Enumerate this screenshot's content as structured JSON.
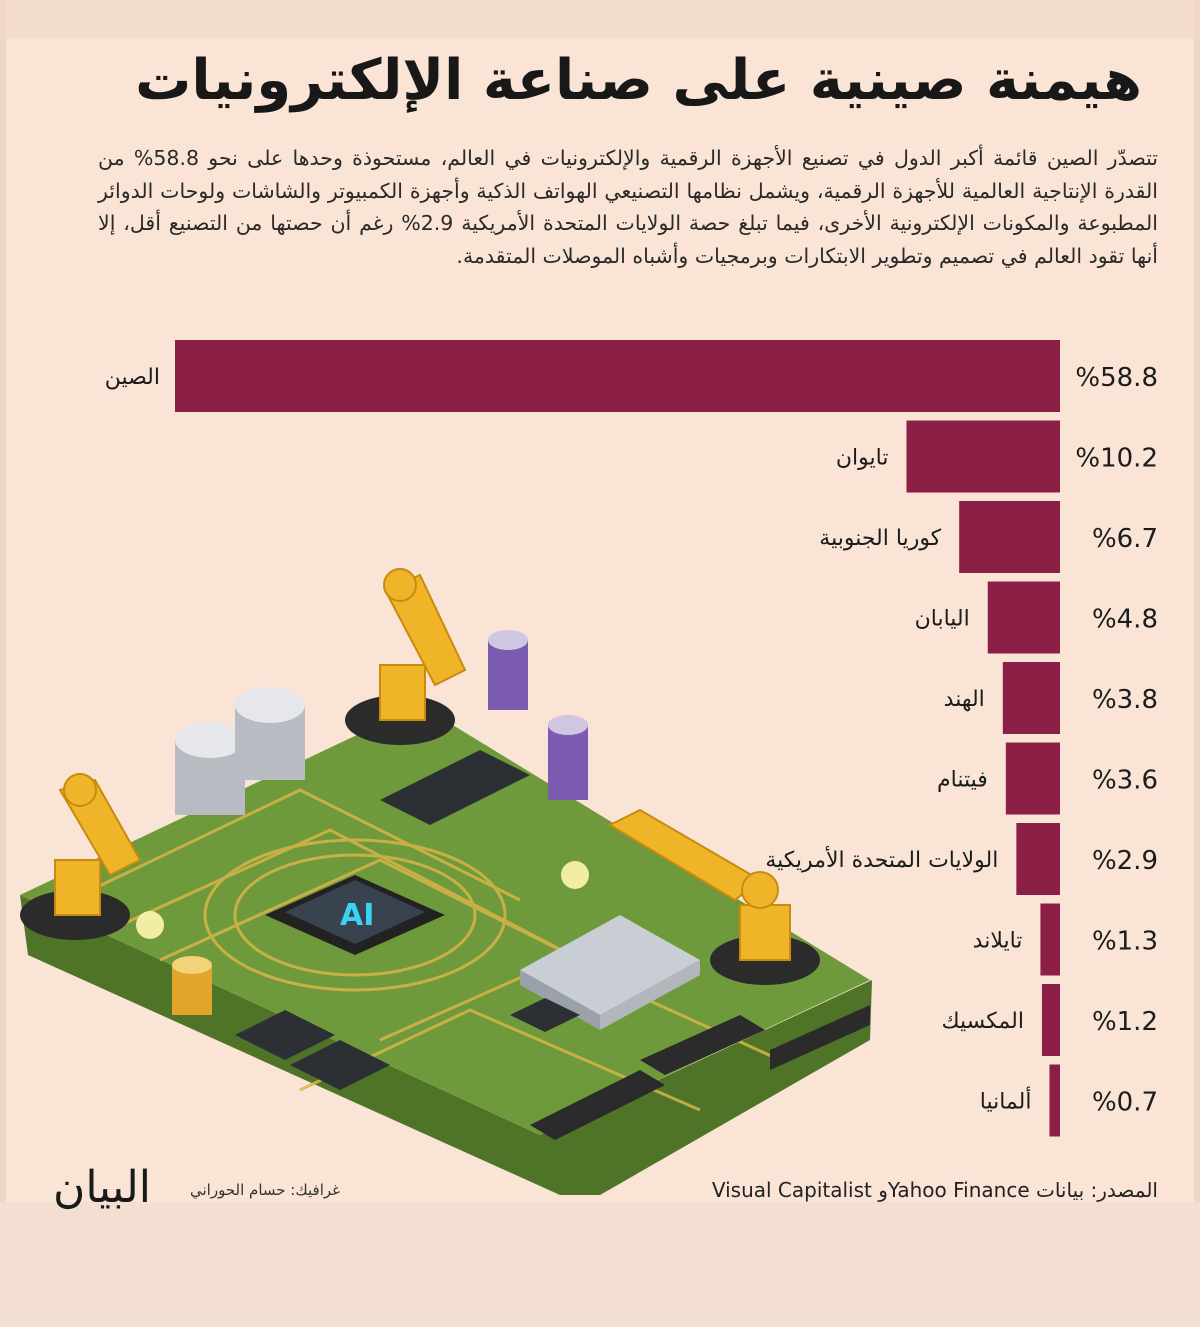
{
  "header": {
    "title": "هيمنة صينية على صناعة الإلكترونيات",
    "intro": "تتصدّر الصين قائمة أكبر الدول في تصنيع الأجهزة الرقمية والإلكترونيات في العالم، مستحوذة وحدها على نحو 58.8% من القدرة الإنتاجية العالمية للأجهزة الرقمية، ويشمل نظامها التصنيعي الهواتف الذكية وأجهزة الكمبيوتر والشاشات ولوحات الدوائر المطبوعة والمكونات الإلكترونية الأخرى، فيما تبلغ حصة الولايات المتحدة الأمريكية 2.9% رغم أن حصتها من التصنيع أقل، إلا أنها تقود العالم في تصميم وتطوير الابتكارات وبرمجيات وأشباه الموصلات المتقدمة."
  },
  "chart_data": {
    "type": "bar",
    "orientation": "horizontal",
    "categories": [
      "الصين",
      "تايوان",
      "كوريا الجنوبية",
      "اليابان",
      "الهند",
      "فيتنام",
      "الولايات المتحدة الأمريكية",
      "تايلاند",
      "المكسيك",
      "ألمانيا"
    ],
    "values": [
      58.8,
      10.2,
      6.7,
      4.8,
      3.8,
      3.6,
      2.9,
      1.3,
      1.2,
      0.7
    ],
    "value_labels": [
      "%58.8",
      "%10.2",
      "%6.7",
      "%4.8",
      "%3.8",
      "%3.6",
      "%2.9",
      "%1.3",
      "%1.2",
      "%0.7"
    ],
    "bar_color": "#8c1f45",
    "xlim": [
      0,
      58.8
    ],
    "grid": false,
    "legend": "none"
  },
  "footer": {
    "source": "المصدر: بيانات Yahoo Financeو Visual Capitalist",
    "credit": "غرافيك: حسام الحوراني",
    "logo_text": "البيان"
  },
  "colors": {
    "background": "#f9e4d6",
    "bar": "#8c1f45",
    "board": "#6f9a3b",
    "board_dark": "#4f7428",
    "robot": "#f0b429",
    "chip_glow": "#39d3f5"
  },
  "illustration": {
    "chip_label": "AI"
  }
}
